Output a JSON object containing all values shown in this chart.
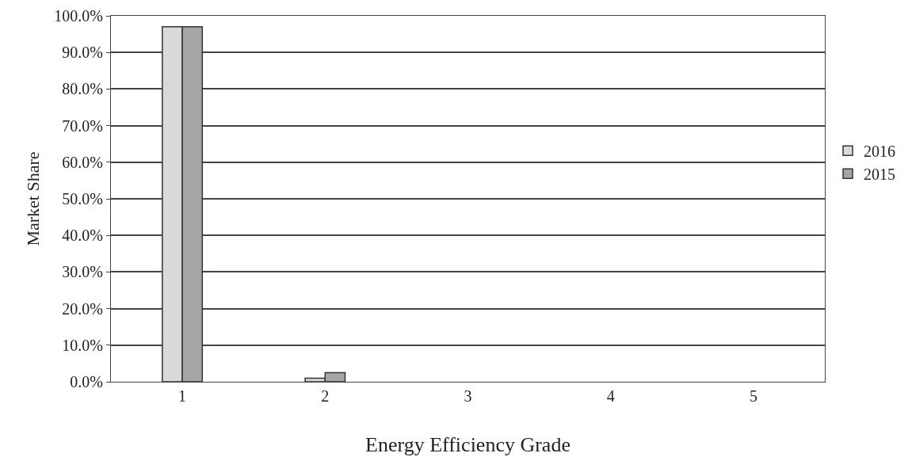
{
  "chart_data": {
    "type": "bar",
    "xlabel": "Energy Efficiency Grade",
    "ylabel": "Market Share",
    "categories": [
      "1",
      "2",
      "3",
      "4",
      "5"
    ],
    "series": [
      {
        "name": "2016",
        "color": "#d9d9d9",
        "values": [
          97,
          1,
          0,
          0,
          0
        ]
      },
      {
        "name": "2015",
        "color": "#a6a6a6",
        "values": [
          97,
          2.5,
          0,
          0,
          0
        ]
      }
    ],
    "ylim": [
      0,
      100
    ],
    "yticks": [
      {
        "value": 0,
        "label": "0.0%"
      },
      {
        "value": 10,
        "label": "10.0%"
      },
      {
        "value": 20,
        "label": "20.0%"
      },
      {
        "value": 30,
        "label": "30.0%"
      },
      {
        "value": 40,
        "label": "40.0%"
      },
      {
        "value": 50,
        "label": "50.0%"
      },
      {
        "value": 60,
        "label": "60.0%"
      },
      {
        "value": 70,
        "label": "70.0%"
      },
      {
        "value": 80,
        "label": "80.0%"
      },
      {
        "value": 90,
        "label": "90.0%"
      },
      {
        "value": 100,
        "label": "100.0%"
      }
    ],
    "grid": "y",
    "legend": "right"
  }
}
